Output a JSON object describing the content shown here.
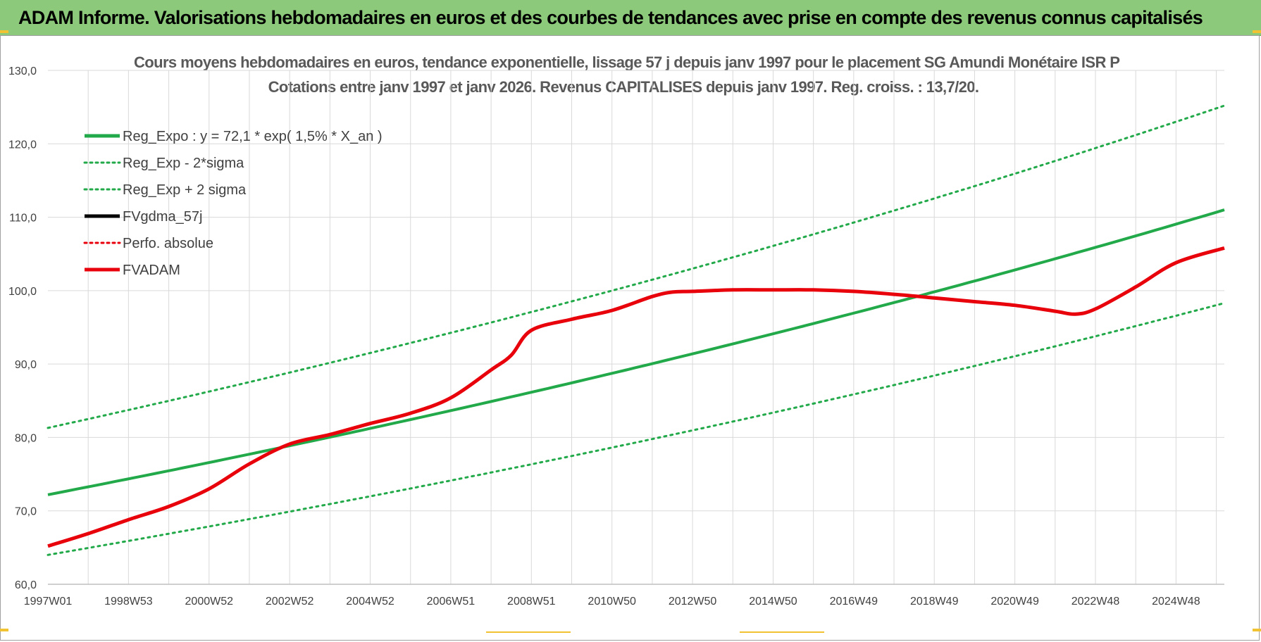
{
  "banner": {
    "title": "ADAM Informe. Valorisations hebdomadaires en euros et des courbes de tendances avec prise en compte des revenus connus capitalisés"
  },
  "colors": {
    "banner_bg": "#8cc97a",
    "regression": "#22a94a",
    "bands": "#22a94a",
    "fvgdma": "#000000",
    "perfo": "#e8000b",
    "fvadam": "#e8000b",
    "accent_corners": "#f1c232"
  },
  "chart_data": {
    "type": "line",
    "title": "Cours moyens hebdomadaires en euros, tendance exponentielle, lissage 57 j depuis janv 1997  pour le placement SG Amundi Monétaire ISR P",
    "subtitle": "Cotations entre janv 1997 et janv 2026. Revenus CAPITALISES depuis janv 1997. Reg. croiss. : 13,7/20.",
    "xlabel": "",
    "ylabel": "",
    "ylim": [
      60,
      130
    ],
    "xlim": [
      1997.0,
      2026.2
    ],
    "y_ticks": [
      "130,0",
      "120,0",
      "110,0",
      "100,0",
      "90,0",
      "80,0",
      "70,0",
      "60,0"
    ],
    "y_tick_values": [
      130,
      120,
      110,
      100,
      90,
      80,
      70,
      60
    ],
    "x_tick_labels": [
      "1997W01",
      "1998W53",
      "2000W52",
      "2002W52",
      "2004W52",
      "2006W51",
      "2008W51",
      "2010W50",
      "2012W50",
      "2014W50",
      "2016W49",
      "2018W49",
      "2020W49",
      "2022W48",
      "2024W48"
    ],
    "x_tick_values": [
      1997.0,
      1999.0,
      2001.0,
      2003.0,
      2005.0,
      2007.0,
      2009.0,
      2011.0,
      2013.0,
      2015.0,
      2017.0,
      2019.0,
      2021.0,
      2023.0,
      2025.0
    ],
    "grid": true,
    "legend_position": "top-left",
    "legend": [
      {
        "label": "Reg_Expo : y = 72,1 * exp( 1,5% *  X_an )",
        "color": "#22a94a",
        "style": "solid"
      },
      {
        "label": "Reg_Exp - 2*sigma",
        "color": "#22a94a",
        "style": "dotted"
      },
      {
        "label": "Reg_Exp + 2 sigma",
        "color": "#22a94a",
        "style": "dotted"
      },
      {
        "label": "FVgdma_57j",
        "color": "#000000",
        "style": "solid"
      },
      {
        "label": "Perfo. absolue",
        "color": "#e8000b",
        "style": "dotted"
      },
      {
        "label": "FVADAM",
        "color": "#e8000b",
        "style": "solid"
      }
    ],
    "series": [
      {
        "name": "Reg_Expo : y = 72,1 * exp( 1,5% *  X_an )",
        "color": "#22a94a",
        "style": "solid",
        "width": 4,
        "x": [
          1997.0,
          2026.2
        ],
        "y": [
          72.2,
          111.0
        ],
        "exponential": true
      },
      {
        "name": "Reg_Exp - 2*sigma",
        "color": "#22a94a",
        "style": "dotted",
        "width": 3,
        "x": [
          1997.0,
          2026.2
        ],
        "y": [
          64.0,
          98.3
        ],
        "exponential": true
      },
      {
        "name": "Reg_Exp + 2 sigma",
        "color": "#22a94a",
        "style": "dotted",
        "width": 3,
        "x": [
          1997.0,
          2026.2
        ],
        "y": [
          81.3,
          125.2
        ],
        "exponential": true
      },
      {
        "name": "FVADAM",
        "color": "#e8000b",
        "style": "solid",
        "width": 5,
        "x": [
          1997.0,
          1998.0,
          1999.0,
          2000.0,
          2001.0,
          2002.0,
          2003.0,
          2004.0,
          2005.0,
          2006.0,
          2007.0,
          2008.0,
          2008.5,
          2009.0,
          2010.0,
          2011.0,
          2012.0,
          2012.5,
          2013.0,
          2014.0,
          2015.0,
          2016.0,
          2017.0,
          2018.0,
          2019.0,
          2020.0,
          2021.0,
          2022.0,
          2022.5,
          2023.0,
          2024.0,
          2025.0,
          2026.2
        ],
        "y": [
          65.2,
          66.9,
          68.8,
          70.6,
          73.0,
          76.4,
          79.1,
          80.4,
          81.9,
          83.3,
          85.4,
          89.2,
          91.2,
          94.6,
          96.1,
          97.3,
          99.2,
          99.8,
          99.9,
          100.1,
          100.1,
          100.1,
          99.9,
          99.5,
          99.0,
          98.5,
          98.0,
          97.2,
          96.8,
          97.5,
          100.5,
          103.8,
          105.8
        ]
      }
    ]
  }
}
